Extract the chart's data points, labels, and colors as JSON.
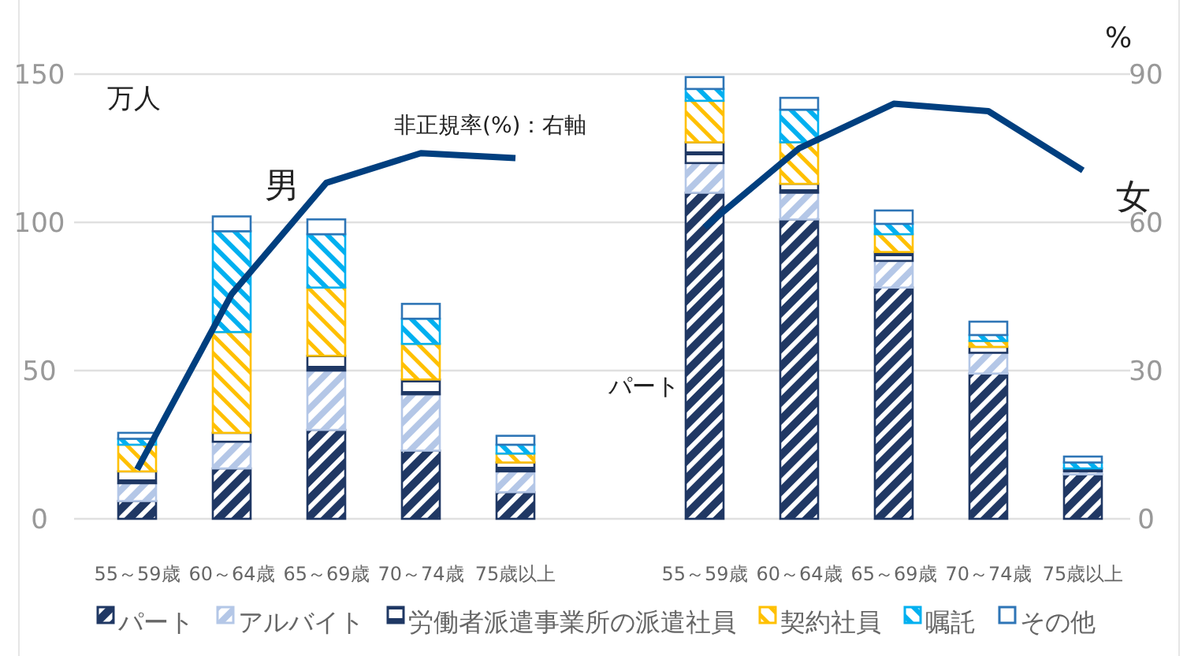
{
  "chart_data": {
    "type": "bar",
    "stacked": true,
    "ylabel": "万人",
    "y2label": "%",
    "categories": [
      "55～59歳",
      "60～64歳",
      "65～69歳",
      "70～74歳",
      "75歳以上",
      null,
      "55～59歳",
      "60～64歳",
      "65～69歳",
      "70～74歳",
      "75歳以上"
    ],
    "series": [
      {
        "name": "パート",
        "color": "#203864",
        "values": [
          6,
          17,
          30,
          23,
          9,
          null,
          110,
          101,
          78,
          49,
          15
        ]
      },
      {
        "name": "アルバイト",
        "color": "#b4c7e7",
        "values": [
          6,
          9,
          20,
          19,
          7,
          null,
          10,
          9,
          9,
          7,
          1
        ]
      },
      {
        "name": "労働者派遣事業所の派遣社員",
        "color": "#1f3864",
        "values": [
          4,
          3,
          5,
          5,
          3,
          null,
          7,
          3,
          3,
          2,
          1
        ]
      },
      {
        "name": "契約社員",
        "color": "#ffc000",
        "values": [
          9,
          34,
          23,
          12,
          3,
          null,
          14,
          14,
          6,
          2,
          null
        ]
      },
      {
        "name": "嘱託",
        "color": "#00b0f0",
        "values": [
          2,
          34,
          18,
          8.5,
          3,
          null,
          4,
          11,
          3.5,
          2,
          2
        ]
      },
      {
        "name": "その他",
        "color": "#2e75b6",
        "values": [
          2,
          5,
          5,
          5,
          3,
          null,
          4,
          4,
          4.5,
          4.5,
          2
        ]
      },
      {
        "type": "line",
        "axis": "y2",
        "color": "#003f7f",
        "values": [
          10,
          45.5,
          68,
          74,
          73,
          null,
          59,
          75,
          84,
          82.5,
          70.5
        ]
      }
    ],
    "ylim": [
      0,
      150
    ],
    "yticks": [
      0,
      50,
      100,
      150
    ],
    "y2lim": [
      0,
      90
    ],
    "y2ticks": [
      0,
      30,
      60,
      90
    ],
    "grid": "y",
    "legend": "bottom",
    "line_style": "solid",
    "marker": "none",
    "annotations": [
      "男",
      "女",
      "非正規率(%)：右軸",
      "パート"
    ]
  }
}
